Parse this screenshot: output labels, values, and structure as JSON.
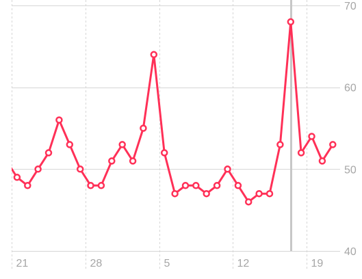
{
  "chart_data": {
    "type": "line",
    "title": "",
    "xlabel": "",
    "ylabel": "",
    "ylim": [
      40,
      70
    ],
    "yticks": [
      40,
      50,
      60,
      70
    ],
    "ytick_labels": [
      "40",
      "50",
      "60",
      "70"
    ],
    "xticks": [
      {
        "index": 1,
        "label": "21"
      },
      {
        "index": 8,
        "label": "28"
      },
      {
        "index": 15,
        "label": "5"
      },
      {
        "index": 22,
        "label": "12"
      },
      {
        "index": 29,
        "label": "19"
      }
    ],
    "grid": true,
    "selected_index": 27,
    "colors": {
      "line": "#ff3057",
      "marker_fill": "#ffffff",
      "grid": "#d6d6d6",
      "selection": "#c7c7c7",
      "tick_label": "#a6a6a6"
    },
    "series": [
      {
        "values": [
          51,
          49,
          48,
          50,
          52,
          56,
          53,
          50,
          48,
          48,
          51,
          53,
          51,
          55,
          64,
          52,
          47,
          48,
          48,
          47,
          48,
          50,
          48,
          46,
          47,
          47,
          53,
          68,
          52,
          54,
          51,
          53
        ],
        "first_point_partially_visible": true
      }
    ]
  }
}
